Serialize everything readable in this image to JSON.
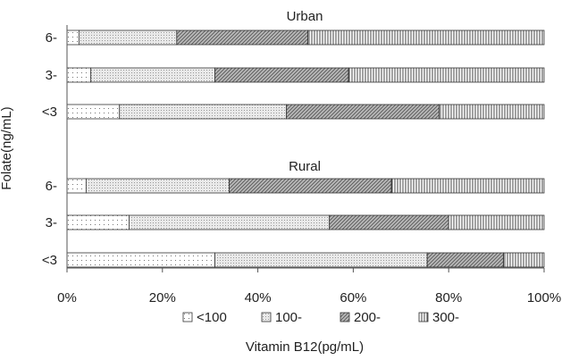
{
  "chart_data": {
    "type": "bar",
    "orientation": "horizontal",
    "stacked": "percent",
    "xlabel": "Vitamin B12(pg/mL)",
    "ylabel": "Folate(ng/mL)",
    "xlim": [
      0,
      100
    ],
    "xticks": [
      "0%",
      "20%",
      "40%",
      "60%",
      "80%",
      "100%"
    ],
    "legend_position": "bottom",
    "grid": false,
    "series": [
      {
        "name": "<100",
        "pattern": "white-dots"
      },
      {
        "name": "100-",
        "pattern": "light-stipple"
      },
      {
        "name": "200-",
        "pattern": "diagonal-hatch"
      },
      {
        "name": "300-",
        "pattern": "vertical-lines"
      }
    ],
    "panels": [
      {
        "title": "Urban",
        "categories": [
          "6-",
          "3-",
          "<3"
        ],
        "values": [
          [
            2.5,
            20.5,
            27.5,
            49.5
          ],
          [
            5.0,
            26.0,
            28.0,
            41.0
          ],
          [
            11.0,
            35.0,
            32.0,
            22.0
          ]
        ]
      },
      {
        "title": "Rural",
        "categories": [
          "6-",
          "3-",
          "<3"
        ],
        "values": [
          [
            4.0,
            30.0,
            34.0,
            32.0
          ],
          [
            13.0,
            42.0,
            25.0,
            20.0
          ],
          [
            31.0,
            44.5,
            16.0,
            8.5
          ]
        ]
      }
    ]
  }
}
